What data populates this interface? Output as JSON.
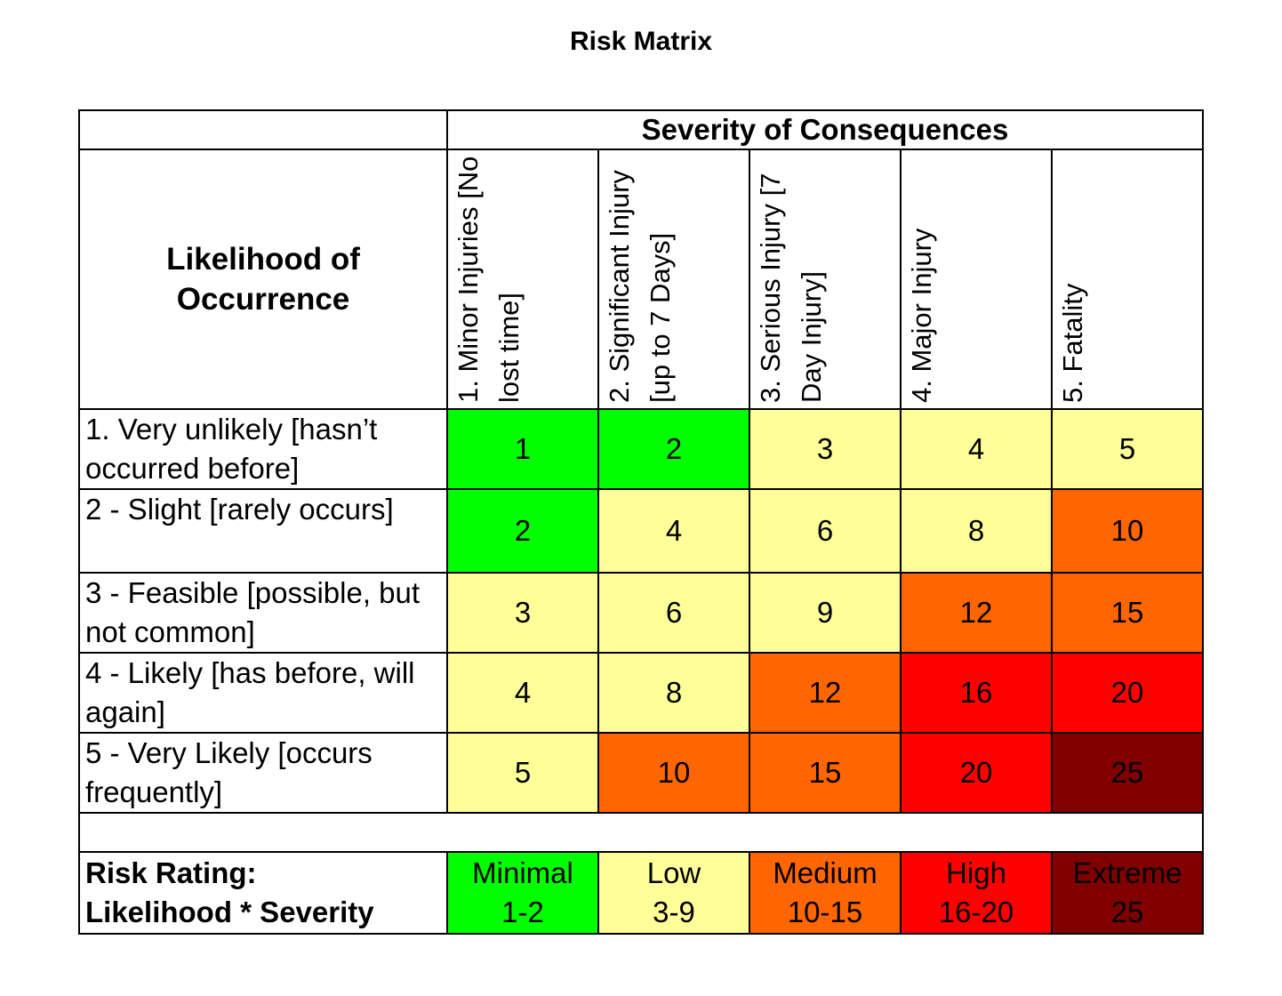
{
  "title": "Risk Matrix",
  "severity_title": "Severity of Consequences",
  "likelihood_title_line1": "Likelihood of",
  "likelihood_title_line2": "Occurrence",
  "severity_columns": [
    "1.   Minor Injuries [No lost time]",
    "2.   Significant Injury    [up to 7 Days]",
    "3.   Serious Injury [7 Day Injury]",
    "4.   Major Injury",
    "5.   Fatality"
  ],
  "likelihood_rows": [
    {
      "label_line1": "1. Very unlikely [hasn’t",
      "label_line2": "occurred before]",
      "values": [
        "1",
        "2",
        "3",
        "4",
        "5"
      ]
    },
    {
      "label_line1": "2 - Slight [rarely occurs]",
      "label_line2": "",
      "values": [
        "2",
        "4",
        "6",
        "8",
        "10"
      ]
    },
    {
      "label_line1": "3 - Feasible [possible, but",
      "label_line2": "not   common]",
      "values": [
        "3",
        "6",
        "9",
        "12",
        "15"
      ]
    },
    {
      "label_line1": "4 - Likely [has before, will",
      "label_line2": "again]",
      "values": [
        "4",
        "8",
        "12",
        "16",
        "20"
      ]
    },
    {
      "label_line1": "5 - Very Likely [occurs",
      "label_line2": "frequently]",
      "values": [
        "5",
        "10",
        "15",
        "20",
        "25"
      ]
    }
  ],
  "colors": {
    "minimal": "#00ff00",
    "low": "#ffff99",
    "medium": "#ff6600",
    "high": "#ff0000",
    "extreme": "#800000"
  },
  "legend": {
    "label_line1": "Risk Rating:",
    "label_line2": "Likelihood * Severity",
    "levels": [
      {
        "name": "Minimal",
        "range": "1-2",
        "level": "minimal"
      },
      {
        "name": "Low",
        "range": "3-9",
        "level": "low"
      },
      {
        "name": "Medium",
        "range": "10-15",
        "level": "medium"
      },
      {
        "name": "High",
        "range": "16-20",
        "level": "high"
      },
      {
        "name": "Extreme",
        "range": "25",
        "level": "extreme"
      }
    ]
  }
}
